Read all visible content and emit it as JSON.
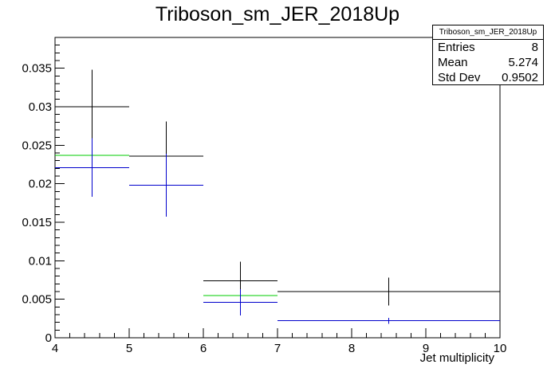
{
  "title": "Triboson_sm_JER_2018Up",
  "stats": {
    "name": "Triboson_sm_JER_2018Up",
    "rows": [
      {
        "label": "Entries",
        "value": "8"
      },
      {
        "label": "Mean",
        "value": "5.274"
      },
      {
        "label": "Std Dev",
        "value": "0.9502"
      }
    ]
  },
  "chart_data": {
    "type": "histogram",
    "title": "Triboson_sm_JER_2018Up",
    "xlabel": "Jet multiplicity",
    "ylabel": "",
    "xlim": [
      4,
      10
    ],
    "ylim": [
      0,
      0.039
    ],
    "xticks": [
      "4",
      "5",
      "6",
      "7",
      "8",
      "9",
      "10"
    ],
    "yticks": [
      "0",
      "0.005",
      "0.01",
      "0.015",
      "0.02",
      "0.025",
      "0.03",
      "0.035"
    ],
    "series": [
      {
        "color": "#000000",
        "bins": [
          {
            "x0": 4,
            "x1": 5,
            "y": 0.03,
            "err": 0.0048
          },
          {
            "x0": 5,
            "x1": 6,
            "y": 0.0236,
            "err": 0.0045
          },
          {
            "x0": 6,
            "x1": 7,
            "y": 0.0074,
            "err": 0.0025
          },
          {
            "x0": 7,
            "x1": 10,
            "y": 0.006,
            "err": 0.0018
          }
        ]
      },
      {
        "color": "#00cc00",
        "bins": [
          {
            "x0": 4,
            "x1": 5,
            "y": 0.0237
          },
          {
            "x0": 6,
            "x1": 7,
            "y": 0.0055
          }
        ]
      },
      {
        "color": "#0000cc",
        "bins": [
          {
            "x0": 4,
            "x1": 5,
            "y": 0.0221,
            "err": 0.0038
          },
          {
            "x0": 5,
            "x1": 6,
            "y": 0.0198,
            "err": 0.0041
          },
          {
            "x0": 6,
            "x1": 7,
            "y": 0.0046,
            "err": 0.0017
          },
          {
            "x0": 7,
            "x1": 10,
            "y": 0.0022,
            "err": 0.0004
          }
        ]
      }
    ]
  }
}
